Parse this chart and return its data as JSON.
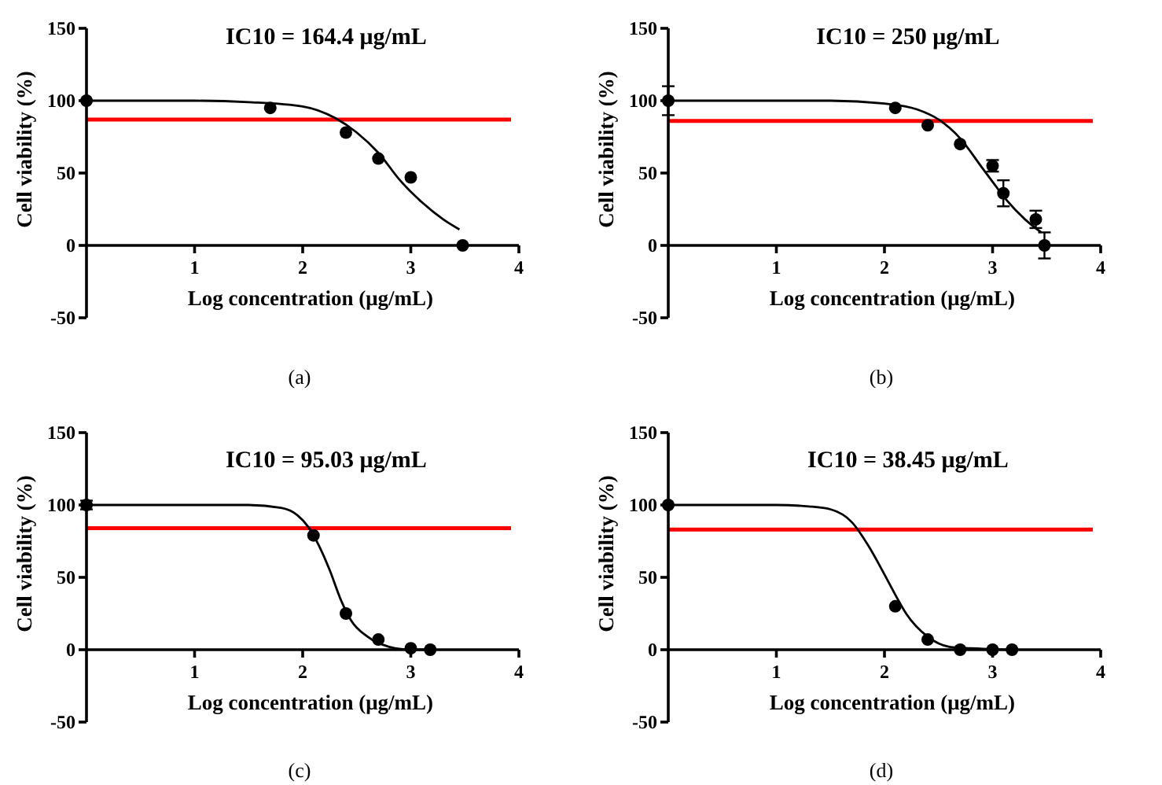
{
  "chart_data": [
    {
      "type": "scatter",
      "title": "IC10 = 164.4 μg/mL",
      "xlabel": "Log concentration (μg/mL)",
      "ylabel": "Cell viability (%)",
      "xlim": [
        0,
        4
      ],
      "xticks": [
        1,
        2,
        3,
        4
      ],
      "ylim": [
        -50,
        150
      ],
      "yticks": [
        -50,
        0,
        50,
        100,
        150
      ],
      "marker": "circle",
      "annotations": [
        "(a)"
      ],
      "ref_lines": [
        {
          "axis": "y",
          "value": 87,
          "color": "#ff0000"
        }
      ],
      "series": [
        {
          "type": "line",
          "marker": "none",
          "color": "#000000",
          "x": [
            0,
            1,
            1.5,
            2,
            2.3,
            2.5,
            2.7,
            2.9,
            3.1,
            3.3,
            3.45
          ],
          "values": [
            100,
            100,
            99,
            96,
            88,
            78,
            64,
            45,
            30,
            18,
            11
          ]
        },
        {
          "color": "#000000",
          "x": [
            0,
            1.7,
            2.4,
            2.7,
            3,
            3.48
          ],
          "values": [
            100,
            95,
            78,
            60,
            47,
            0
          ]
        }
      ]
    },
    {
      "type": "scatter",
      "title": "IC10 = 250 μg/mL",
      "xlabel": "Log concentration (μg/mL)",
      "ylabel": "Cell viability (%)",
      "xlim": [
        0,
        4
      ],
      "xticks": [
        1,
        2,
        3,
        4
      ],
      "ylim": [
        -50,
        150
      ],
      "yticks": [
        -50,
        0,
        50,
        100,
        150
      ],
      "marker": "circle",
      "annotations": [
        "(b)"
      ],
      "ref_lines": [
        {
          "axis": "y",
          "value": 86,
          "color": "#ff0000"
        }
      ],
      "series": [
        {
          "type": "line",
          "marker": "none",
          "color": "#000000",
          "x": [
            0,
            1,
            1.5,
            2,
            2.3,
            2.5,
            2.7,
            2.9,
            3,
            3.1,
            3.3,
            3.45
          ],
          "values": [
            100,
            100,
            100,
            98,
            94,
            87,
            74,
            54,
            44,
            34,
            18,
            9
          ]
        },
        {
          "color": "#000000",
          "x": [
            0,
            2.1,
            2.4,
            2.7,
            3,
            3.1,
            3.4,
            3.48
          ],
          "values": [
            100,
            95,
            83,
            70,
            55,
            36,
            18,
            0
          ],
          "errors": [
            10,
            null,
            null,
            null,
            4,
            9,
            6,
            9
          ]
        }
      ]
    },
    {
      "type": "scatter",
      "title": "IC10 = 95.03 μg/mL",
      "xlabel": "Log concentration (μg/mL)",
      "ylabel": "Cell viability (%)",
      "xlim": [
        0,
        4
      ],
      "xticks": [
        1,
        2,
        3,
        4
      ],
      "ylim": [
        -50,
        150
      ],
      "yticks": [
        -50,
        0,
        50,
        100,
        150
      ],
      "marker": "circle",
      "annotations": [
        "(c)"
      ],
      "ref_lines": [
        {
          "axis": "y",
          "value": 84,
          "color": "#ff0000"
        }
      ],
      "series": [
        {
          "type": "line",
          "marker": "none",
          "color": "#000000",
          "x": [
            0,
            1,
            1.5,
            1.8,
            1.95,
            2.05,
            2.15,
            2.25,
            2.35,
            2.45,
            2.6,
            2.8,
            3,
            3.18
          ],
          "values": [
            100,
            100,
            100,
            98,
            93,
            85,
            72,
            55,
            35,
            20,
            9,
            2,
            0,
            0
          ]
        },
        {
          "color": "#000000",
          "x": [
            0,
            2.1,
            2.4,
            2.7,
            3,
            3.18
          ],
          "values": [
            100,
            79,
            25,
            7,
            1,
            0
          ],
          "errors": [
            3,
            null,
            null,
            null,
            null,
            null
          ]
        }
      ]
    },
    {
      "type": "scatter",
      "title": "IC10 = 38.45 μg/mL",
      "xlabel": "Log concentration (μg/mL)",
      "ylabel": "Cell viability (%)",
      "xlim": [
        0,
        4
      ],
      "xticks": [
        1,
        2,
        3,
        4
      ],
      "ylim": [
        -50,
        150
      ],
      "yticks": [
        -50,
        0,
        50,
        100,
        150
      ],
      "marker": "circle",
      "annotations": [
        "(d)"
      ],
      "ref_lines": [
        {
          "axis": "y",
          "value": 83,
          "color": "#ff0000"
        }
      ],
      "series": [
        {
          "type": "line",
          "marker": "none",
          "color": "#000000",
          "x": [
            0,
            1,
            1.3,
            1.5,
            1.7,
            1.85,
            2,
            2.1,
            2.2,
            2.4,
            2.6,
            2.8,
            3.18
          ],
          "values": [
            100,
            100,
            99,
            97,
            88,
            72,
            52,
            38,
            25,
            9,
            2,
            1,
            0
          ]
        },
        {
          "color": "#000000",
          "x": [
            0,
            2.1,
            2.4,
            2.7,
            3,
            3.18
          ],
          "values": [
            100,
            30,
            7,
            0,
            0,
            0
          ]
        }
      ]
    }
  ]
}
